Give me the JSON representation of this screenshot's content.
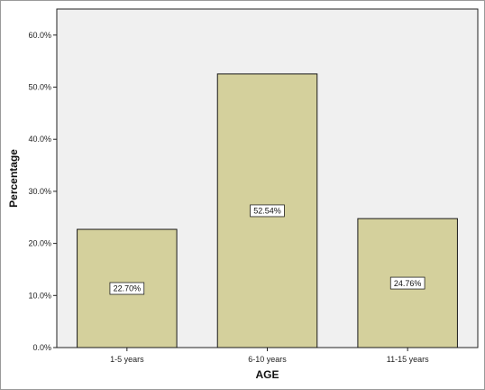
{
  "chart_data": {
    "type": "bar",
    "title": "",
    "xlabel": "AGE",
    "ylabel": "Percentage",
    "categories": [
      "1-5 years",
      "6-10 years",
      "11-15 years"
    ],
    "values": [
      22.7,
      52.54,
      24.76
    ],
    "data_labels": [
      "22.70%",
      "52.54%",
      "24.76%"
    ],
    "ylim": [
      0,
      65
    ],
    "yticks": [
      0,
      10,
      20,
      30,
      40,
      50,
      60
    ],
    "ytick_labels": [
      "0.0%",
      "10.0%",
      "20.0%",
      "30.0%",
      "40.0%",
      "50.0%",
      "60.0%"
    ],
    "grid": false,
    "legend": "none",
    "colors": {
      "bar_fill": "#d4d09c",
      "bar_stroke": "#1a1a1a",
      "plot_background": "#f0f0f0",
      "label_box_fill": "#ffffff"
    }
  }
}
